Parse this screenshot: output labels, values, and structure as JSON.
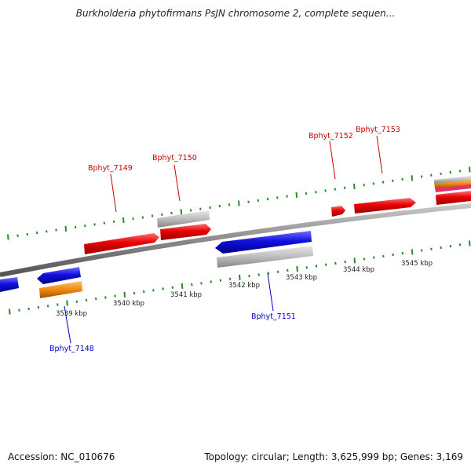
{
  "title": "Burkholderia phytofirmans PsJN chromosome 2, complete sequen...",
  "footer": {
    "accession": "Accession: NC_010676",
    "topology": "Topology: circular; Length: 3,625,999 bp; Genes: 3,169"
  },
  "scale_labels": [
    {
      "id": "kbp-3539",
      "text": "3539 kbp"
    },
    {
      "id": "kbp-3540",
      "text": "3540 kbp"
    },
    {
      "id": "kbp-3541",
      "text": "3541 kbp"
    },
    {
      "id": "kbp-3542",
      "text": "3542 kbp"
    },
    {
      "id": "kbp-3543",
      "text": "3543 kbp"
    },
    {
      "id": "kbp-3544",
      "text": "3544 kbp"
    },
    {
      "id": "kbp-3545",
      "text": "3545 kbp"
    }
  ],
  "gene_labels": [
    {
      "id": "bphyt-7148",
      "text": "Bphyt_7148",
      "color": "#0000cc"
    },
    {
      "id": "bphyt-7149",
      "text": "Bphyt_7149",
      "color": "#cc0000"
    },
    {
      "id": "bphyt-7150",
      "text": "Bphyt_7150",
      "color": "#cc0000"
    },
    {
      "id": "bphyt-7151",
      "text": "Bphyt_7151",
      "color": "#0000cc"
    },
    {
      "id": "bphyt-7152",
      "text": "Bphyt_7152",
      "color": "#cc0000"
    },
    {
      "id": "bphyt-7153",
      "text": "Bphyt_7153",
      "color": "#cc0000"
    }
  ],
  "colors": {
    "forward_gene": "#e00000",
    "reverse_gene": "#1010e0",
    "pseudo_gene": "#b8b8b8",
    "orange_gene": "#f08a10",
    "tick": "#2a8a2a",
    "backbone": "#888888"
  }
}
